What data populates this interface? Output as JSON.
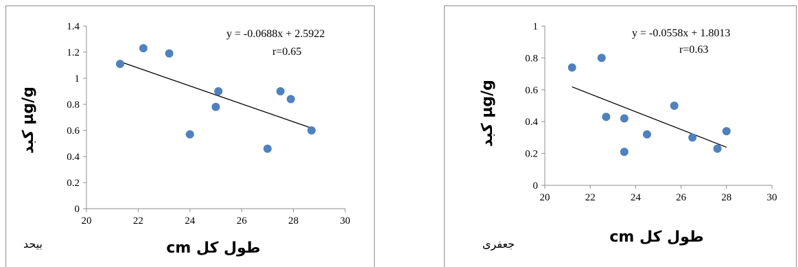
{
  "chart_data": [
    {
      "type": "scatter",
      "species_label": "بيحد",
      "xlabel": "طول کل cm",
      "ylabel": "کبد µg/g",
      "xlim": [
        20,
        30
      ],
      "ylim": [
        0,
        1.4
      ],
      "xticks": [
        20,
        22,
        24,
        26,
        28,
        30
      ],
      "yticks": [
        0,
        0.2,
        0.4,
        0.6,
        0.8,
        1,
        1.2,
        1.4
      ],
      "ytick_labels": [
        "0",
        "0.2",
        "0.4",
        "0.6",
        "0.8",
        "1",
        "1.2",
        "1.4"
      ],
      "equation": "y = -0.0688x + 2.5922",
      "r_text": "r=0.65",
      "trend": {
        "slope": -0.0688,
        "intercept": 2.5922,
        "x_start": 21.3,
        "x_end": 28.7
      },
      "points": [
        {
          "x": 21.3,
          "y": 1.11
        },
        {
          "x": 22.2,
          "y": 1.23
        },
        {
          "x": 23.2,
          "y": 1.19
        },
        {
          "x": 24.0,
          "y": 0.57
        },
        {
          "x": 25.0,
          "y": 0.78
        },
        {
          "x": 25.1,
          "y": 0.9
        },
        {
          "x": 27.0,
          "y": 0.46
        },
        {
          "x": 27.5,
          "y": 0.9
        },
        {
          "x": 27.9,
          "y": 0.84
        },
        {
          "x": 28.7,
          "y": 0.6
        }
      ],
      "point_color": "#4f81bd"
    },
    {
      "type": "scatter",
      "species_label": "جعفری",
      "xlabel": "طول کل cm",
      "ylabel": "کبد µg/g",
      "xlim": [
        20,
        30
      ],
      "ylim": [
        0,
        1
      ],
      "xticks": [
        20,
        22,
        24,
        26,
        28,
        30
      ],
      "yticks": [
        0,
        0.2,
        0.4,
        0.6,
        0.8,
        1
      ],
      "ytick_labels": [
        "0",
        "0.2",
        "0.4",
        "0.6",
        "0.8",
        "1"
      ],
      "equation": "y = -0.0558x + 1.8013",
      "r_text": "r=0.63",
      "trend": {
        "slope": -0.0558,
        "intercept": 1.8013,
        "x_start": 21.2,
        "x_end": 28.0
      },
      "points": [
        {
          "x": 21.2,
          "y": 0.74
        },
        {
          "x": 22.5,
          "y": 0.8
        },
        {
          "x": 22.7,
          "y": 0.43
        },
        {
          "x": 23.5,
          "y": 0.42
        },
        {
          "x": 23.5,
          "y": 0.21
        },
        {
          "x": 24.5,
          "y": 0.32
        },
        {
          "x": 25.7,
          "y": 0.5
        },
        {
          "x": 26.5,
          "y": 0.3
        },
        {
          "x": 27.6,
          "y": 0.23
        },
        {
          "x": 28.0,
          "y": 0.34
        }
      ],
      "point_color": "#4f81bd"
    }
  ]
}
